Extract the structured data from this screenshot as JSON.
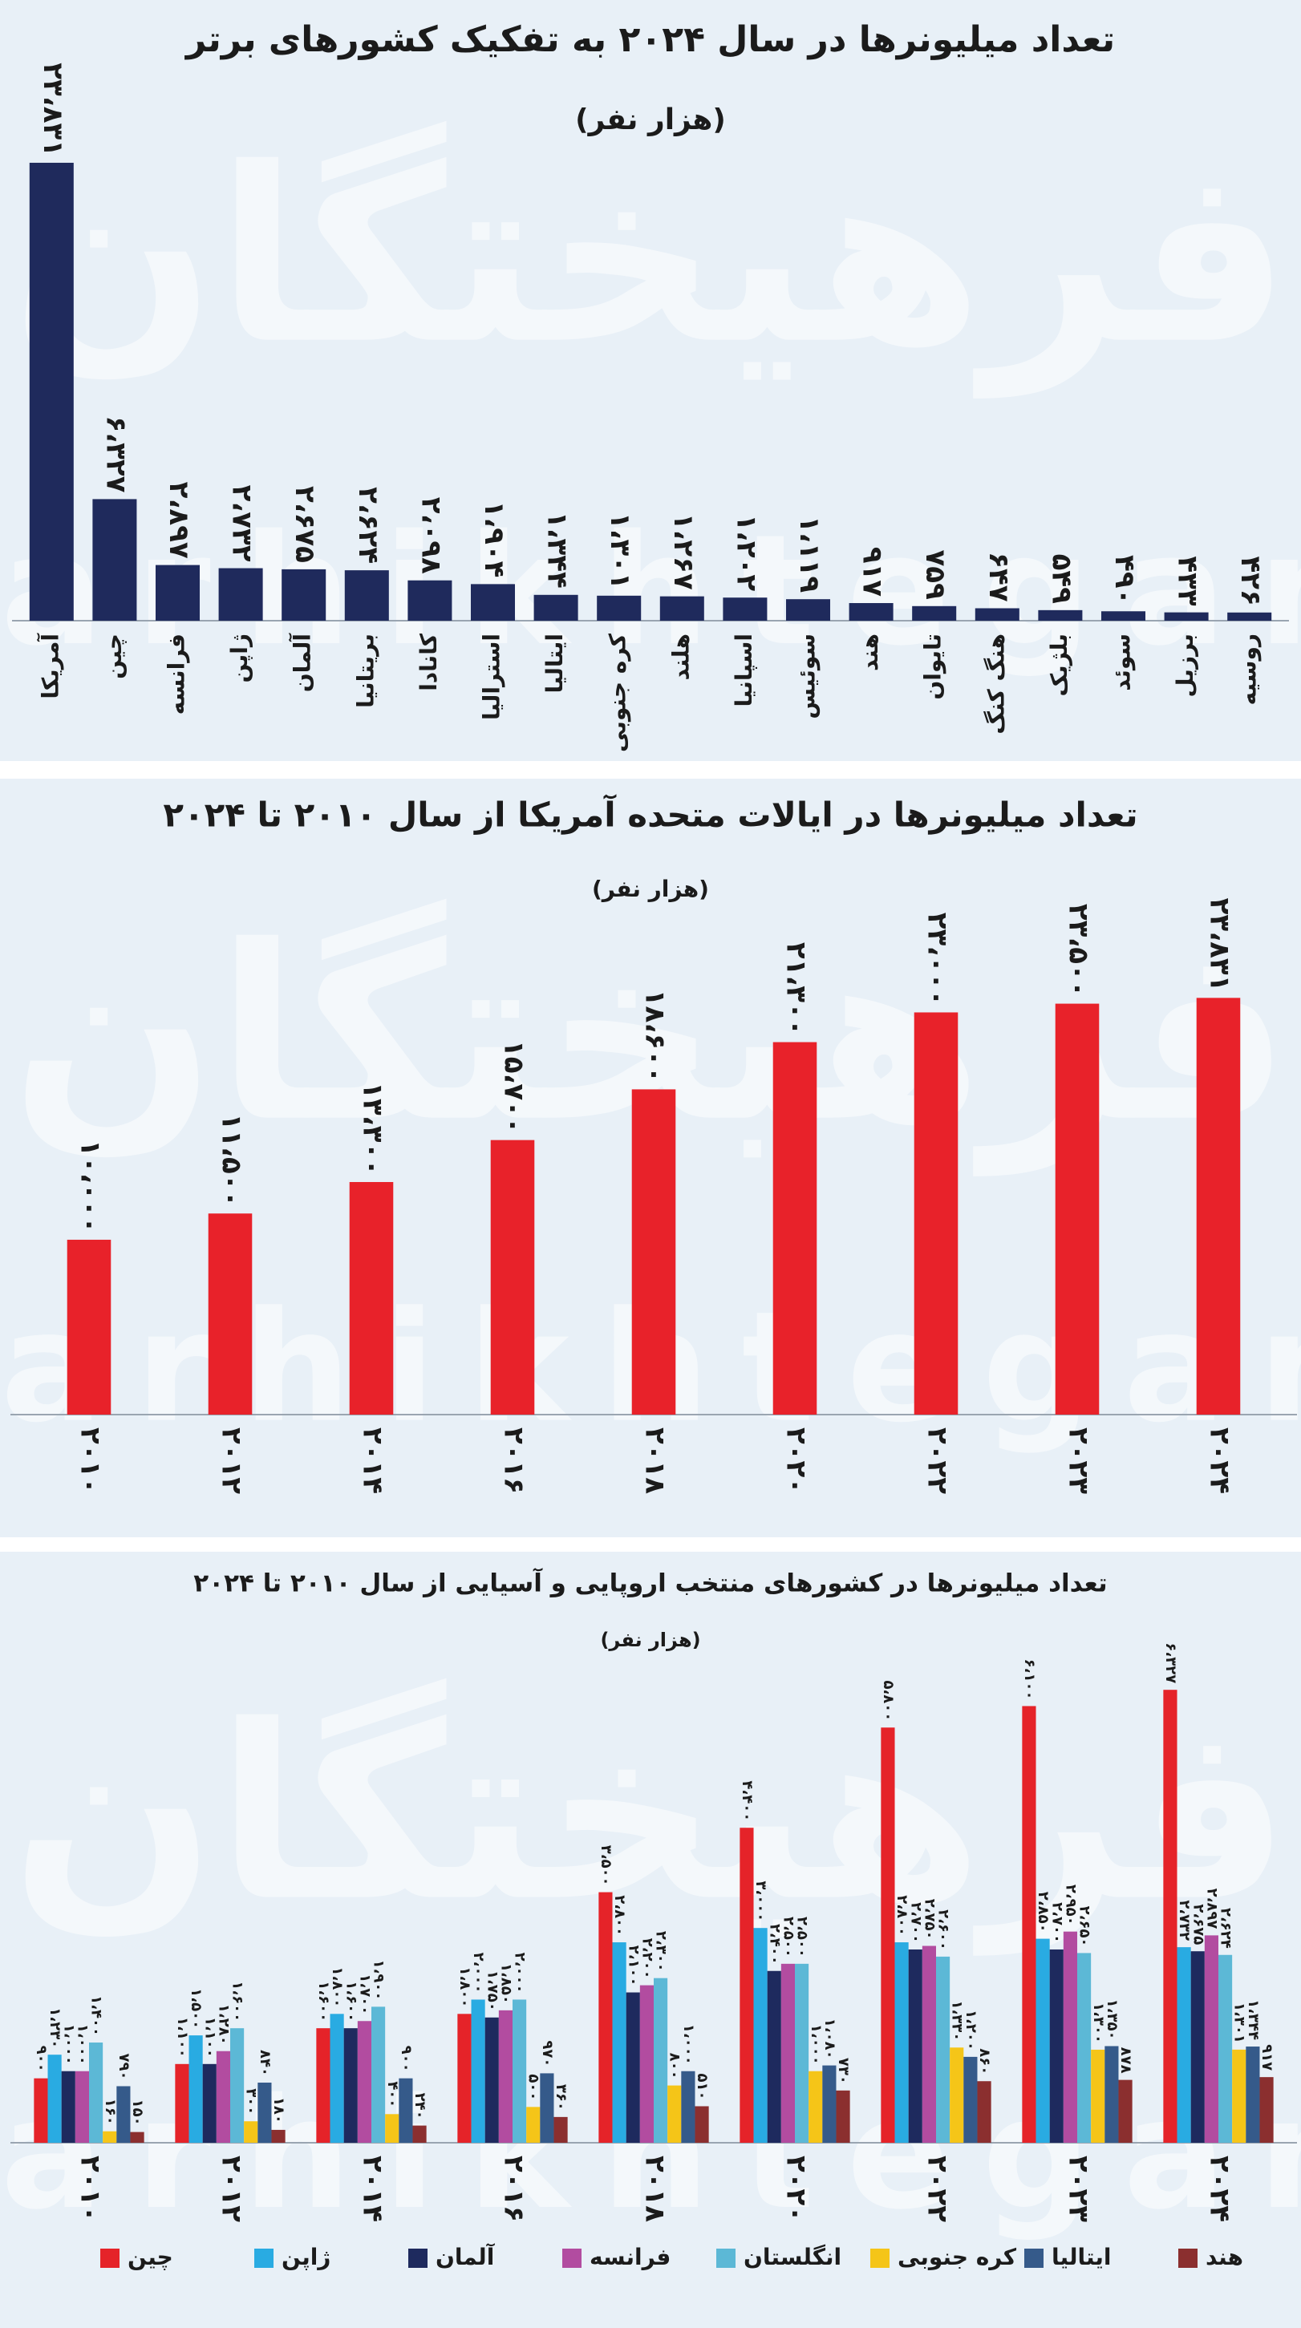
{
  "watermark": {
    "fa": "فرهیختگان",
    "en": "farhikhtegan"
  },
  "chart_data": [
    {
      "type": "bar",
      "title": "تعداد میلیونرها در سال ۲۰۲۴ به تفکیک کشورهای برتر",
      "subtitle": "(هزار نفر)",
      "categories": [
        "آمریکا",
        "چین",
        "فرانسه",
        "ژاپن",
        "آلمان",
        "بریتانیا",
        "کانادا",
        "استرالیا",
        "ایتالیا",
        "کره جنوبی",
        "هلند",
        "اسپانیا",
        "سوئیس",
        "هند",
        "تایوان",
        "هنگ کنگ",
        "بلژیک",
        "سوئد",
        "برزیل",
        "روسیه"
      ],
      "values": [
        23831,
        6327,
        2897,
        2732,
        2675,
        2624,
        2098,
        1904,
        1344,
        1301,
        1267,
        1202,
        1119,
        917,
        759,
        647,
        549,
        490,
        433,
        426
      ],
      "value_labels": [
        "۲۳،۸۳۱",
        "۶،۳۲۷",
        "۲،۸۹۷",
        "۲،۷۳۲",
        "۲،۶۷۵",
        "۲،۶۲۴",
        "۲،۰۹۸",
        "۱،۹۰۴",
        "۱،۳۴۴",
        "۱،۳۰۱",
        "۱،۲۶۷",
        "۱،۲۰۲",
        "۱،۱۱۹",
        "۹۱۷",
        "۷۵۹",
        "۶۴۷",
        "۵۴۹",
        "۴۹۰",
        "۴۳۳",
        "۴۲۶"
      ],
      "color": "#1f2a5c",
      "ylim": [
        0,
        26000
      ]
    },
    {
      "type": "bar",
      "title": "تعداد میلیونرها در ایالات متحده آمریکا از سال ۲۰۱۰ تا ۲۰۲۴",
      "subtitle": "(هزار نفر)",
      "categories": [
        "۲۰۱۰",
        "۲۰۱۲",
        "۲۰۱۴",
        "۲۰۱۶",
        "۲۰۱۸",
        "۲۰۲۰",
        "۲۰۲۲",
        "۲۰۲۳",
        "۲۰۲۴"
      ],
      "values": [
        10000,
        11500,
        13300,
        15700,
        18600,
        21300,
        23000,
        23500,
        23831
      ],
      "value_labels": [
        "۱۰،۰۰۰",
        "۱۱،۵۰۰",
        "۱۳،۳۰۰",
        "۱۵،۷۰۰",
        "۱۸،۶۰۰",
        "۲۱،۳۰۰",
        "۲۳،۰۰۰",
        "۲۳،۵۰۰",
        "۲۳،۸۳۱"
      ],
      "color": "#e8222a",
      "ylim": [
        0,
        36000
      ]
    },
    {
      "type": "bar",
      "title": "تعداد میلیونرها در کشورهای منتخب اروپایی و آسیایی از سال ۲۰۱۰ تا ۲۰۲۴",
      "subtitle": "(هزار نفر)",
      "categories": [
        "۲۰۱۰",
        "۲۰۱۲",
        "۲۰۱۴",
        "۲۰۱۶",
        "۲۰۱۸",
        "۲۰۲۰",
        "۲۰۲۲",
        "۲۰۲۳",
        "۲۰۲۴"
      ],
      "ylim": [
        0,
        8200
      ],
      "series": [
        {
          "name": "چین",
          "color": "#e52329",
          "values": [
            900,
            1100,
            1600,
            1800,
            3500,
            4400,
            5800,
            6100,
            6327
          ],
          "value_labels": [
            "۹۰۰",
            "۱،۱۰۰",
            "۱،۶۰۰",
            "۱،۸۰۰",
            "۳،۵۰۰",
            "۴،۴۰۰",
            "۵،۸۰۰",
            "۶،۱۰۰",
            "۶،۳۲۷"
          ]
        },
        {
          "name": "ژاپن",
          "color": "#29abe2",
          "values": [
            1230,
            1500,
            1800,
            2000,
            2800,
            3000,
            2800,
            2850,
            2732
          ],
          "value_labels": [
            "۱،۲۳۰",
            "۱،۵۰۰",
            "۱،۸۰۰",
            "۲،۰۰۰",
            "۲،۸۰۰",
            "۳،۰۰۰",
            "۲،۸۰۰",
            "۲،۸۵۰",
            "۲،۷۳۲"
          ]
        },
        {
          "name": "آلمان",
          "color": "#1e2a5e",
          "values": [
            1000,
            1100,
            1600,
            1750,
            2100,
            2400,
            2700,
            2700,
            2675
          ],
          "value_labels": [
            "۱،۰۰۰",
            "۱،۱۰۰",
            "۱،۶۰۰",
            "۱،۷۵۰",
            "۲،۱۰۰",
            "۲،۴۰۰",
            "۲،۷۰۰",
            "۲،۷۰۰",
            "۲،۶۷۵"
          ]
        },
        {
          "name": "فرانسه",
          "color": "#b24ca0",
          "values": [
            1000,
            1280,
            1700,
            1850,
            2200,
            2500,
            2750,
            2950,
            2897
          ],
          "value_labels": [
            "۱،۰۰۰",
            "۱،۲۸۰",
            "۱،۷۰۰",
            "۱،۸۵۰",
            "۲،۲۰۰",
            "۲،۵۰۰",
            "۲،۷۵۰",
            "۲،۹۵۰",
            "۲،۸۹۷"
          ]
        },
        {
          "name": "انگلستان",
          "color": "#5cb8d6",
          "values": [
            1400,
            1600,
            1900,
            2000,
            2300,
            2500,
            2600,
            2650,
            2624
          ],
          "value_labels": [
            "۱،۴۰۰",
            "۱،۶۰۰",
            "۱،۹۰۰",
            "۲،۰۰۰",
            "۲،۳۰۰",
            "۲،۵۰۰",
            "۲،۶۰۰",
            "۲،۶۵۰",
            "۲،۶۲۴"
          ]
        },
        {
          "name": "کره جنوبی",
          "color": "#f5c518",
          "values": [
            160,
            300,
            400,
            500,
            800,
            1000,
            1330,
            1300,
            1301
          ],
          "value_labels": [
            "۱۶۰",
            "۳۰۰",
            "۴۰۰",
            "۵۰۰",
            "۸۰۰",
            "۱،۰۰۰",
            "۱،۳۳۰",
            "۱،۳۰۰",
            "۱،۳۰۱"
          ]
        },
        {
          "name": "ایتالیا",
          "color": "#355a8a",
          "values": [
            790,
            840,
            900,
            970,
            1000,
            1080,
            1200,
            1350,
            1344
          ],
          "value_labels": [
            "۷۹۰",
            "۸۴۰",
            "۹۰۰",
            "۹۷۰",
            "۱،۰۰۰",
            "۱،۰۸۰",
            "۱،۲۰۰",
            "۱،۳۵۰",
            "۱،۳۴۴"
          ]
        },
        {
          "name": "هند",
          "color": "#8b2f2f",
          "values": [
            150,
            180,
            240,
            360,
            510,
            730,
            860,
            878,
            917
          ],
          "value_labels": [
            "۱۵۰",
            "۱۸۰",
            "۲۴۰",
            "۳۶۰",
            "۵۱۰",
            "۷۳۰",
            "۸۶۰",
            "۸۷۸",
            "۹۱۷"
          ]
        }
      ]
    }
  ]
}
